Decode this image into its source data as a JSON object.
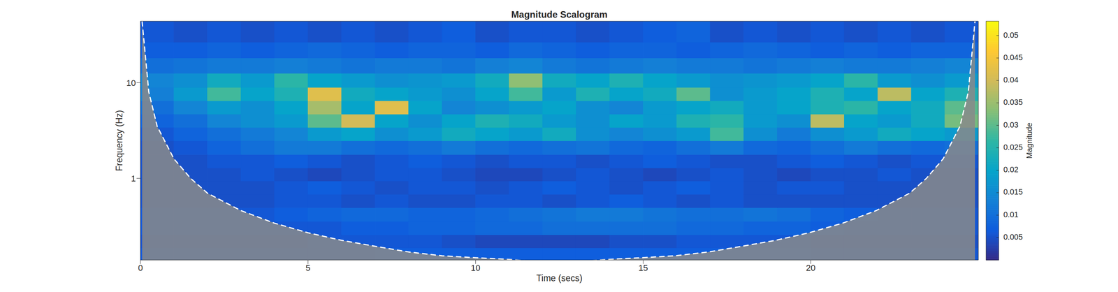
{
  "chart_data": {
    "type": "heatmap",
    "title": "Magnitude Scalogram",
    "x_label": "Time (secs)",
    "y_label": "Frequency (Hz)",
    "colorbar_label": "Magnitude",
    "log": "y",
    "xlim": [
      0,
      25
    ],
    "xticks": [
      0,
      5,
      10,
      15,
      20
    ],
    "ylim": [
      0.14,
      44
    ],
    "yticks": [
      1,
      10
    ],
    "times": [
      0.5,
      1.5,
      2.5,
      3.5,
      4.5,
      5.5,
      6.5,
      7.5,
      8.5,
      9.5,
      10.5,
      11.5,
      12.5,
      13.5,
      14.5,
      15.5,
      16.5,
      17.5,
      18.5,
      19.5,
      20.5,
      21.5,
      22.5,
      23.5,
      24.5
    ],
    "frequencies": [
      0.16,
      0.22,
      0.3,
      0.42,
      0.58,
      0.8,
      1.1,
      1.5,
      2.1,
      2.9,
      4,
      5.5,
      7.6,
      10.5,
      15,
      22,
      32
    ],
    "cells": [
      [
        0.006,
        0.006,
        0.006,
        0.006,
        0.006,
        0.006,
        0.006,
        0.007,
        0.007,
        0.007,
        0.007,
        0.007,
        0.007,
        0.007,
        0.007,
        0.007,
        0.007,
        0.007,
        0.007,
        0.007,
        0.006,
        0.006,
        0.006,
        0.006,
        0.006
      ],
      [
        0.005,
        0.005,
        0.005,
        0.005,
        0.005,
        0.006,
        0.006,
        0.006,
        0.006,
        0.005,
        0.004,
        0.004,
        0.004,
        0.004,
        0.005,
        0.005,
        0.006,
        0.006,
        0.006,
        0.006,
        0.005,
        0.005,
        0.005,
        0.005,
        0.005
      ],
      [
        0.006,
        0.006,
        0.006,
        0.006,
        0.006,
        0.006,
        0.007,
        0.007,
        0.008,
        0.008,
        0.009,
        0.009,
        0.01,
        0.01,
        0.01,
        0.01,
        0.009,
        0.009,
        0.008,
        0.008,
        0.007,
        0.006,
        0.006,
        0.006,
        0.006
      ],
      [
        0.006,
        0.006,
        0.006,
        0.006,
        0.007,
        0.008,
        0.009,
        0.009,
        0.008,
        0.008,
        0.009,
        0.01,
        0.011,
        0.012,
        0.012,
        0.011,
        0.01,
        0.01,
        0.011,
        0.01,
        0.008,
        0.007,
        0.006,
        0.006,
        0.006
      ],
      [
        0.005,
        0.005,
        0.005,
        0.005,
        0.006,
        0.006,
        0.005,
        0.006,
        0.005,
        0.005,
        0.006,
        0.006,
        0.005,
        0.006,
        0.007,
        0.006,
        0.005,
        0.006,
        0.005,
        0.005,
        0.005,
        0.005,
        0.005,
        0.005,
        0.005
      ],
      [
        0.005,
        0.005,
        0.005,
        0.005,
        0.006,
        0.007,
        0.006,
        0.005,
        0.006,
        0.006,
        0.005,
        0.006,
        0.007,
        0.006,
        0.005,
        0.006,
        0.007,
        0.006,
        0.005,
        0.006,
        0.006,
        0.005,
        0.005,
        0.005,
        0.005
      ],
      [
        0.005,
        0.005,
        0.005,
        0.006,
        0.005,
        0.004,
        0.005,
        0.006,
        0.006,
        0.005,
        0.004,
        0.004,
        0.005,
        0.006,
        0.005,
        0.004,
        0.005,
        0.006,
        0.005,
        0.004,
        0.005,
        0.005,
        0.006,
        0.005,
        0.005
      ],
      [
        0.005,
        0.005,
        0.006,
        0.006,
        0.007,
        0.006,
        0.005,
        0.006,
        0.007,
        0.006,
        0.005,
        0.006,
        0.006,
        0.005,
        0.006,
        0.007,
        0.006,
        0.005,
        0.005,
        0.006,
        0.007,
        0.006,
        0.005,
        0.006,
        0.006
      ],
      [
        0.005,
        0.006,
        0.008,
        0.01,
        0.012,
        0.012,
        0.01,
        0.009,
        0.01,
        0.012,
        0.01,
        0.009,
        0.01,
        0.011,
        0.009,
        0.008,
        0.01,
        0.012,
        0.009,
        0.008,
        0.01,
        0.012,
        0.01,
        0.009,
        0.01
      ],
      [
        0.006,
        0.008,
        0.01,
        0.012,
        0.014,
        0.018,
        0.02,
        0.016,
        0.018,
        0.022,
        0.02,
        0.018,
        0.022,
        0.016,
        0.014,
        0.016,
        0.018,
        0.028,
        0.016,
        0.012,
        0.016,
        0.018,
        0.022,
        0.02,
        0.018
      ],
      [
        0.008,
        0.01,
        0.014,
        0.016,
        0.018,
        0.03,
        0.04,
        0.02,
        0.016,
        0.02,
        0.024,
        0.022,
        0.018,
        0.016,
        0.02,
        0.018,
        0.024,
        0.026,
        0.018,
        0.016,
        0.038,
        0.02,
        0.018,
        0.022,
        0.032
      ],
      [
        0.01,
        0.014,
        0.018,
        0.016,
        0.02,
        0.036,
        0.02,
        0.042,
        0.02,
        0.014,
        0.016,
        0.018,
        0.02,
        0.016,
        0.014,
        0.018,
        0.02,
        0.022,
        0.018,
        0.02,
        0.024,
        0.026,
        0.02,
        0.022,
        0.03
      ],
      [
        0.013,
        0.018,
        0.028,
        0.02,
        0.024,
        0.042,
        0.022,
        0.02,
        0.018,
        0.016,
        0.02,
        0.028,
        0.018,
        0.024,
        0.02,
        0.022,
        0.03,
        0.016,
        0.018,
        0.02,
        0.024,
        0.02,
        0.038,
        0.02,
        0.024
      ],
      [
        0.014,
        0.016,
        0.022,
        0.018,
        0.026,
        0.02,
        0.018,
        0.016,
        0.017,
        0.018,
        0.022,
        0.034,
        0.022,
        0.02,
        0.024,
        0.02,
        0.018,
        0.016,
        0.017,
        0.018,
        0.02,
        0.026,
        0.018,
        0.016,
        0.018
      ],
      [
        0.01,
        0.011,
        0.012,
        0.012,
        0.013,
        0.012,
        0.011,
        0.012,
        0.012,
        0.011,
        0.013,
        0.014,
        0.012,
        0.011,
        0.012,
        0.013,
        0.012,
        0.012,
        0.011,
        0.012,
        0.013,
        0.012,
        0.012,
        0.013,
        0.014
      ],
      [
        0.007,
        0.007,
        0.008,
        0.007,
        0.008,
        0.009,
        0.008,
        0.007,
        0.008,
        0.008,
        0.007,
        0.009,
        0.008,
        0.007,
        0.008,
        0.008,
        0.007,
        0.008,
        0.009,
        0.008,
        0.007,
        0.008,
        0.007,
        0.008,
        0.008
      ],
      [
        0.006,
        0.005,
        0.006,
        0.005,
        0.006,
        0.005,
        0.006,
        0.005,
        0.006,
        0.007,
        0.005,
        0.006,
        0.006,
        0.005,
        0.006,
        0.007,
        0.008,
        0.005,
        0.006,
        0.005,
        0.006,
        0.005,
        0.006,
        0.005,
        0.006
      ]
    ],
    "colorbar_range": [
      0,
      0.0532
    ],
    "colorbar_ticks": [
      0.005,
      0.01,
      0.015,
      0.02,
      0.025,
      0.03,
      0.035,
      0.04,
      0.045,
      0.05
    ],
    "cone_of_influence": {
      "color": "#ffffff",
      "line_style": "dashed",
      "x": [
        0.05,
        0.25,
        0.5,
        1,
        1.5,
        2,
        3,
        4,
        5,
        6,
        7,
        8,
        9,
        10,
        11,
        12.47,
        13.95,
        14.95,
        15.95,
        16.95,
        17.95,
        18.95,
        19.95,
        20.95,
        21.95,
        22.95,
        23.45,
        23.95,
        24.45,
        24.7,
        24.9
      ],
      "y": [
        44,
        8,
        3.5,
        1.6,
        1.0,
        0.7,
        0.46,
        0.34,
        0.27,
        0.225,
        0.195,
        0.17,
        0.155,
        0.148,
        0.142,
        0.13,
        0.142,
        0.148,
        0.155,
        0.17,
        0.195,
        0.225,
        0.27,
        0.34,
        0.46,
        0.7,
        1.0,
        1.6,
        3.5,
        8,
        44
      ]
    }
  }
}
